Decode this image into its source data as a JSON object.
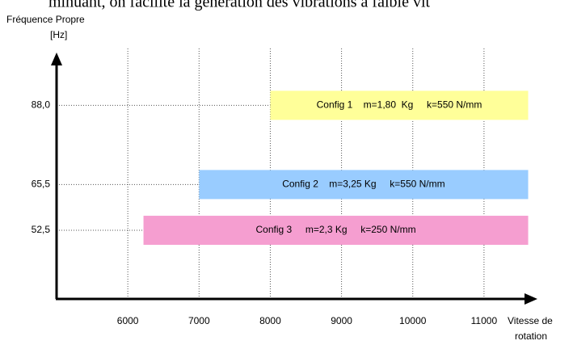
{
  "header_text": "minuant, on facilite la génération des vibrations à faible vit",
  "chart_data": {
    "type": "range-bar",
    "y_label": [
      "Fréquence Propre",
      "[Hz]"
    ],
    "x_label": [
      "Vitesse de",
      "rotation"
    ],
    "xlim": [
      5000,
      11750
    ],
    "ylim": [
      33,
      103
    ],
    "xticks": [
      6000,
      7000,
      8000,
      9000,
      10000,
      11000
    ],
    "yticks": [
      {
        "value": 52.5,
        "label": "52,5"
      },
      {
        "value": 65.5,
        "label": "65,5"
      },
      {
        "value": 88.0,
        "label": "88,0"
      }
    ],
    "grid": true,
    "series": [
      {
        "name": "Config 1    m=1,80  Kg     k=550 N/mm",
        "color": "#ffff99",
        "y": 88.0,
        "start": 8000,
        "end": 11620
      },
      {
        "name": "Config 2    m=3,25 Kg     k=550 N/mm",
        "color": "#99ccff",
        "y": 65.5,
        "start": 7000,
        "end": 11620
      },
      {
        "name": "Config 3     m=2,3 Kg     k=250 N/mm",
        "color": "#f59ed0",
        "y": 52.5,
        "start": 6220,
        "end": 11620
      }
    ]
  }
}
